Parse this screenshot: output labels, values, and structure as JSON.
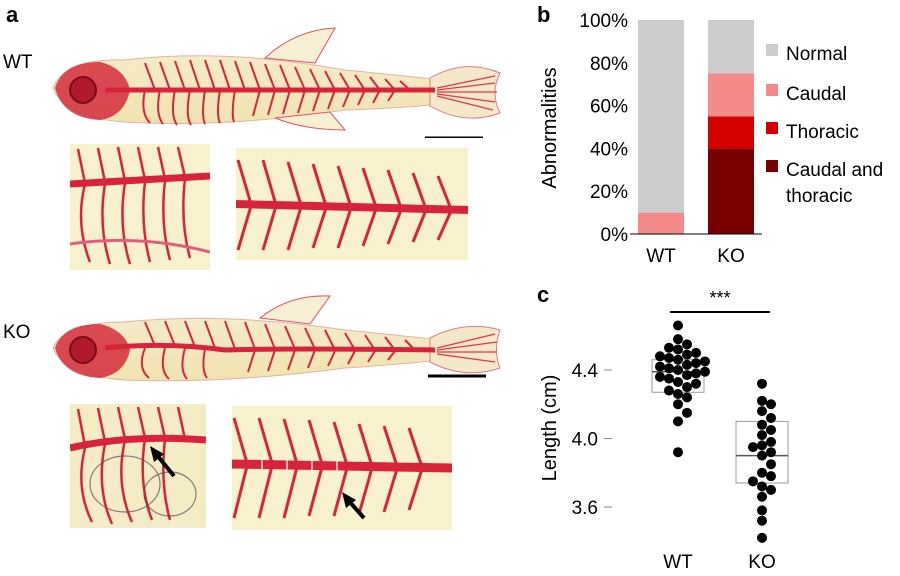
{
  "panel_a": {
    "letter": "a",
    "wt_label": "WT",
    "ko_label": "KO"
  },
  "panel_b": {
    "letter": "b"
  },
  "panel_c": {
    "letter": "c",
    "significance": "***"
  },
  "colors": {
    "normal": "#cccccc",
    "caudal": "#f58a8a",
    "thoracic": "#d40000",
    "caudal_and_thoracic": "#7a0000",
    "stain": "#d9243a",
    "background_photo": "#f7f1c8"
  },
  "chart_data": [
    {
      "type": "bar",
      "stacked": true,
      "categories": [
        "WT",
        "KO"
      ],
      "ylabel": "Abnormalities",
      "ylim": [
        0,
        100
      ],
      "yticks": [
        "0%",
        "20%",
        "40%",
        "60%",
        "80%",
        "100%"
      ],
      "series": [
        {
          "name": "Caudal and thoracic",
          "values": [
            0,
            40
          ],
          "color": "#7a0000"
        },
        {
          "name": "Thoracic",
          "values": [
            0,
            15
          ],
          "color": "#d40000"
        },
        {
          "name": "Caudal",
          "values": [
            10,
            20
          ],
          "color": "#f58a8a"
        },
        {
          "name": "Normal",
          "values": [
            90,
            25
          ],
          "color": "#cccccc"
        }
      ],
      "legend": [
        "Normal",
        "Caudal",
        "Thoracic",
        "Caudal and thoracic"
      ],
      "legend_placement": "right"
    },
    {
      "type": "scatter",
      "subtype": "dot-and-box",
      "categories": [
        "WT",
        "KO"
      ],
      "ylabel": "Length (cm)",
      "ylim": [
        3.5,
        4.7
      ],
      "yticks": [
        "3.6",
        "4.0",
        "4.4"
      ],
      "groups": [
        {
          "name": "WT",
          "box": {
            "q1": 4.27,
            "median": 4.39,
            "q3": 4.46
          },
          "points": [
            4.66,
            4.58,
            4.55,
            4.53,
            4.52,
            4.5,
            4.49,
            4.48,
            4.47,
            4.46,
            4.45,
            4.44,
            4.43,
            4.42,
            4.41,
            4.4,
            4.39,
            4.38,
            4.37,
            4.36,
            4.35,
            4.33,
            4.32,
            4.3,
            4.28,
            4.26,
            4.24,
            4.2,
            4.15,
            4.1,
            3.92
          ]
        },
        {
          "name": "KO",
          "box": {
            "q1": 3.74,
            "median": 3.9,
            "q3": 4.1
          },
          "points": [
            4.32,
            4.22,
            4.2,
            4.16,
            4.12,
            4.08,
            4.05,
            4.02,
            3.98,
            3.96,
            3.95,
            3.92,
            3.9,
            3.85,
            3.8,
            3.78,
            3.75,
            3.72,
            3.7,
            3.66,
            3.58,
            3.52,
            3.42
          ]
        }
      ],
      "significance_label": "***"
    }
  ]
}
